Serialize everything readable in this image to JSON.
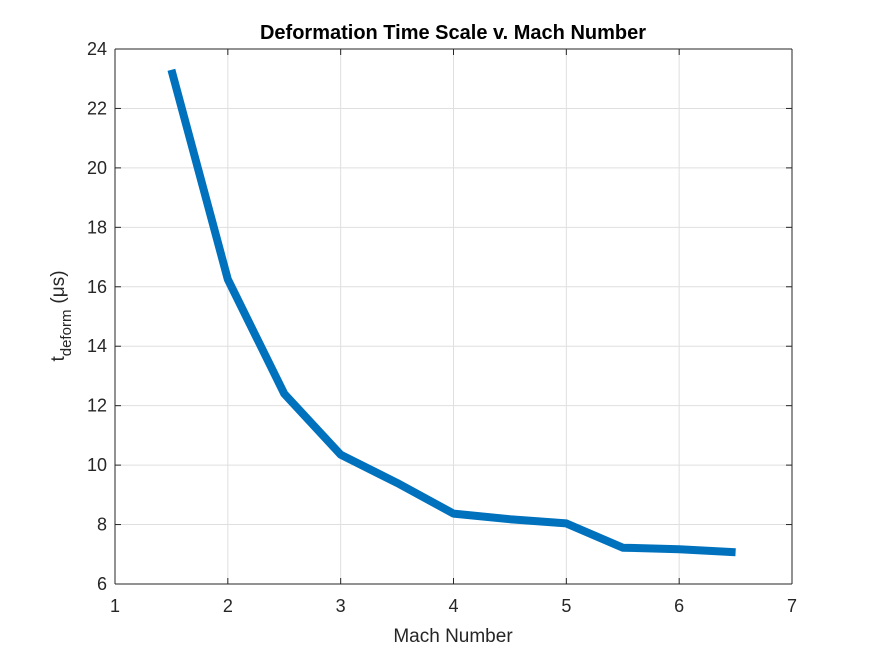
{
  "chart_data": {
    "type": "line",
    "title": "Deformation Time Scale v. Mach Number",
    "xlabel": "Mach Number",
    "ylabel": {
      "main": "t",
      "subscript": "deform",
      "unit": "(μs)"
    },
    "xlim": [
      1,
      7
    ],
    "ylim": [
      6,
      24
    ],
    "xticks": [
      1,
      2,
      3,
      4,
      5,
      6,
      7
    ],
    "yticks": [
      6,
      8,
      10,
      12,
      14,
      16,
      18,
      20,
      22,
      24
    ],
    "grid": true,
    "legend": "none",
    "series": [
      {
        "color": "#0072BD",
        "x": [
          1.5,
          2.0,
          2.5,
          3.0,
          3.5,
          4.0,
          4.5,
          5.0,
          5.5,
          6.0,
          6.5
        ],
        "y": [
          23.3,
          16.25,
          12.4,
          10.35,
          9.4,
          8.37,
          8.18,
          8.04,
          7.22,
          7.17,
          7.07
        ]
      }
    ]
  }
}
